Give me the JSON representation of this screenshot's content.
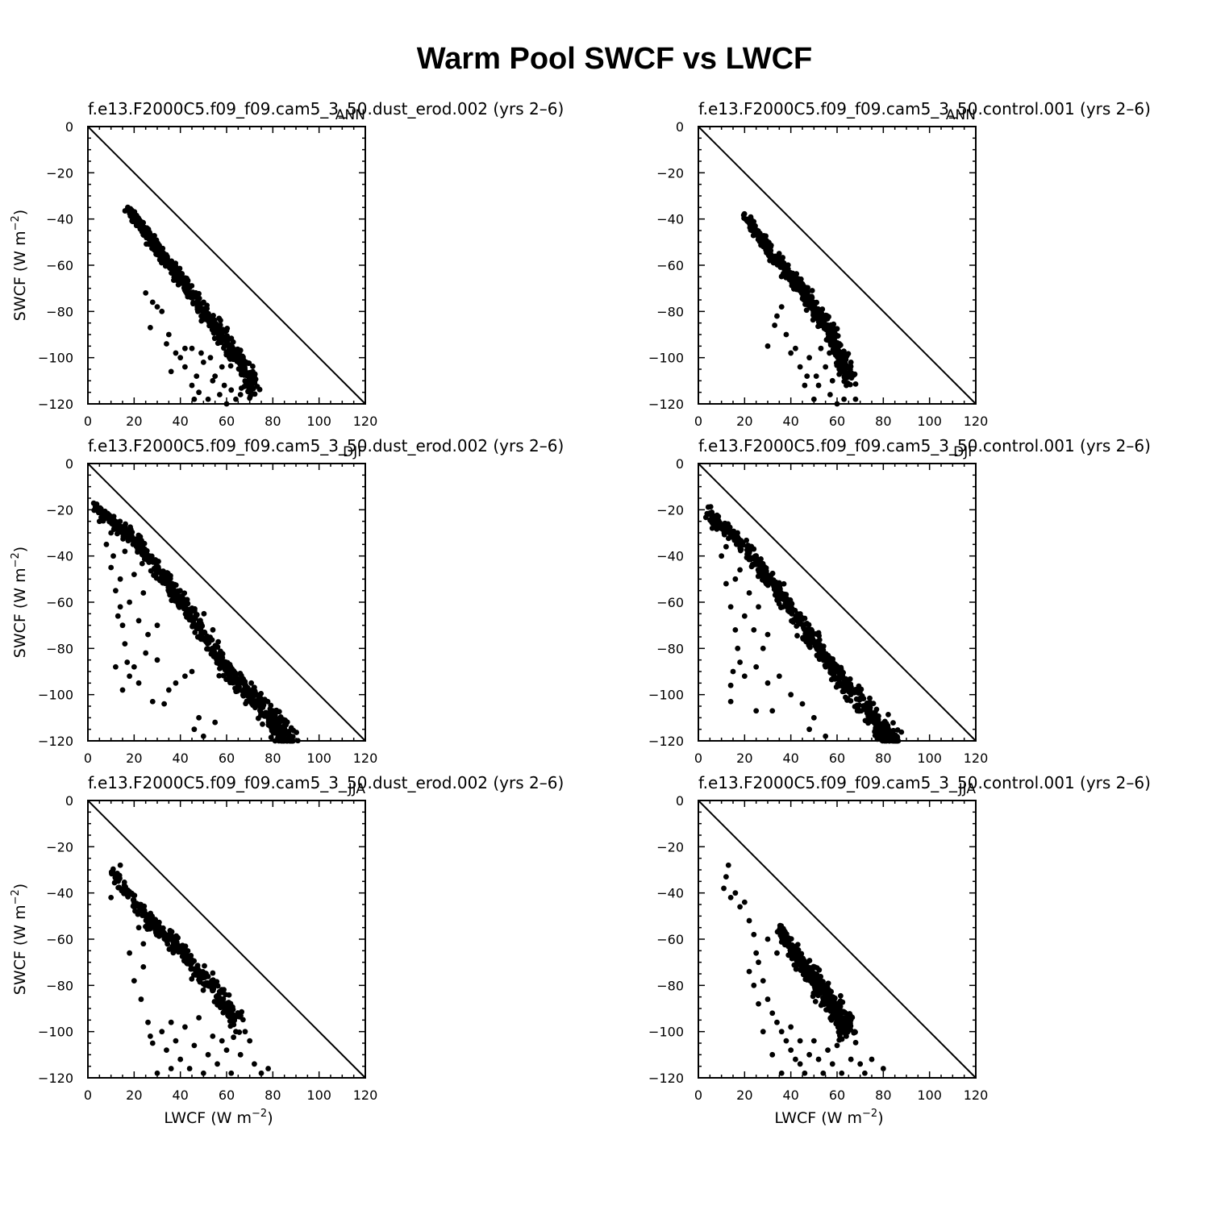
{
  "title": "Warm Pool SWCF vs LWCF",
  "chart_data": [
    {
      "type": "scatter",
      "id": "ann-left",
      "subtitle": "f.e13.F2000C5.f09_f09.cam5_3_50.dust_erod.002 (yrs 2–6)",
      "season": "ANN",
      "xlim": [
        0,
        120
      ],
      "ylim": [
        -120,
        0
      ],
      "xticks": [
        0,
        20,
        40,
        60,
        80,
        100,
        120
      ],
      "yticks": [
        0,
        -20,
        -40,
        -60,
        -80,
        -100,
        -120
      ],
      "ylabel": "SWCF (W m−2)",
      "xlabel": "",
      "reference_line": [
        [
          0,
          0
        ],
        [
          120,
          -120
        ]
      ],
      "seed": 11,
      "band": [
        [
          17,
          -35
        ],
        [
          30,
          -52
        ],
        [
          45,
          -72
        ],
        [
          62,
          -95
        ],
        [
          72,
          -112
        ]
      ],
      "band_width": 4,
      "band_n": 520,
      "scatter": [
        [
          25,
          -72
        ],
        [
          27,
          -87
        ],
        [
          34,
          -94
        ],
        [
          38,
          -98
        ],
        [
          42,
          -104
        ],
        [
          45,
          -112
        ],
        [
          48,
          -115
        ],
        [
          52,
          -118
        ],
        [
          55,
          -108
        ],
        [
          57,
          -116
        ],
        [
          60,
          -120
        ],
        [
          62,
          -114
        ],
        [
          50,
          -102
        ],
        [
          45,
          -96
        ],
        [
          40,
          -100
        ],
        [
          32,
          -80
        ],
        [
          28,
          -76
        ],
        [
          36,
          -106
        ],
        [
          54,
          -110
        ],
        [
          64,
          -118
        ],
        [
          58,
          -104
        ],
        [
          47,
          -108
        ],
        [
          42,
          -96
        ],
        [
          35,
          -90
        ],
        [
          30,
          -78
        ],
        [
          53,
          -100
        ],
        [
          59,
          -112
        ],
        [
          66,
          -116
        ],
        [
          46,
          -118
        ],
        [
          49,
          -98
        ]
      ]
    },
    {
      "type": "scatter",
      "id": "ann-right",
      "subtitle": "f.e13.F2000C5.f09_f09.cam5_3_50.control.001 (yrs 2–6)",
      "season": "ANN",
      "xlim": [
        0,
        120
      ],
      "ylim": [
        -120,
        0
      ],
      "xticks": [
        0,
        20,
        40,
        60,
        80,
        100,
        120
      ],
      "yticks": [
        0,
        -20,
        -40,
        -60,
        -80,
        -100,
        -120
      ],
      "ylabel": "",
      "xlabel": "",
      "reference_line": [
        [
          0,
          0
        ],
        [
          120,
          -120
        ]
      ],
      "seed": 23,
      "band": [
        [
          20,
          -38
        ],
        [
          32,
          -55
        ],
        [
          45,
          -70
        ],
        [
          58,
          -90
        ],
        [
          66,
          -110
        ]
      ],
      "band_width": 4,
      "band_n": 500,
      "scatter": [
        [
          30,
          -95
        ],
        [
          34,
          -82
        ],
        [
          36,
          -78
        ],
        [
          40,
          -98
        ],
        [
          44,
          -104
        ],
        [
          47,
          -108
        ],
        [
          50,
          -118
        ],
        [
          52,
          -112
        ],
        [
          55,
          -104
        ],
        [
          57,
          -116
        ],
        [
          60,
          -120
        ],
        [
          64,
          -112
        ],
        [
          68,
          -118
        ],
        [
          66,
          -102
        ],
        [
          62,
          -106
        ],
        [
          48,
          -100
        ],
        [
          42,
          -96
        ],
        [
          38,
          -90
        ],
        [
          33,
          -86
        ],
        [
          53,
          -96
        ],
        [
          58,
          -110
        ],
        [
          46,
          -112
        ],
        [
          51,
          -108
        ],
        [
          63,
          -118
        ]
      ]
    },
    {
      "type": "scatter",
      "id": "djf-left",
      "subtitle": "f.e13.F2000C5.f09_f09.cam5_3_50.dust_erod.002 (yrs 2–6)",
      "season": "DJF",
      "xlim": [
        0,
        120
      ],
      "ylim": [
        -120,
        0
      ],
      "xticks": [
        0,
        20,
        40,
        60,
        80,
        100,
        120
      ],
      "yticks": [
        0,
        -20,
        -40,
        -60,
        -80,
        -100,
        -120
      ],
      "ylabel": "SWCF (W m−2)",
      "xlabel": "",
      "reference_line": [
        [
          0,
          0
        ],
        [
          120,
          -120
        ]
      ],
      "seed": 37,
      "band": [
        [
          3,
          -18
        ],
        [
          20,
          -32
        ],
        [
          40,
          -58
        ],
        [
          60,
          -88
        ],
        [
          80,
          -110
        ],
        [
          88,
          -120
        ]
      ],
      "band_width": 5,
      "band_n": 620,
      "scatter": [
        [
          5,
          -25
        ],
        [
          8,
          -35
        ],
        [
          10,
          -45
        ],
        [
          12,
          -55
        ],
        [
          14,
          -62
        ],
        [
          15,
          -70
        ],
        [
          16,
          -78
        ],
        [
          17,
          -86
        ],
        [
          15,
          -98
        ],
        [
          18,
          -92
        ],
        [
          20,
          -88
        ],
        [
          22,
          -95
        ],
        [
          25,
          -82
        ],
        [
          28,
          -103
        ],
        [
          30,
          -85
        ],
        [
          33,
          -104
        ],
        [
          35,
          -98
        ],
        [
          38,
          -95
        ],
        [
          42,
          -92
        ],
        [
          45,
          -90
        ],
        [
          48,
          -110
        ],
        [
          46,
          -115
        ],
        [
          50,
          -118
        ],
        [
          55,
          -112
        ],
        [
          12,
          -88
        ],
        [
          11,
          -40
        ],
        [
          14,
          -50
        ],
        [
          18,
          -60
        ],
        [
          22,
          -68
        ],
        [
          26,
          -74
        ],
        [
          30,
          -70
        ],
        [
          20,
          -48
        ],
        [
          24,
          -56
        ],
        [
          10,
          -30
        ],
        [
          16,
          -38
        ],
        [
          13,
          -66
        ]
      ]
    },
    {
      "type": "scatter",
      "id": "djf-right",
      "subtitle": "f.e13.F2000C5.f09_f09.cam5_3_50.control.001 (yrs 2–6)",
      "season": "DJF",
      "xlim": [
        0,
        120
      ],
      "ylim": [
        -120,
        0
      ],
      "xticks": [
        0,
        20,
        40,
        60,
        80,
        100,
        120
      ],
      "yticks": [
        0,
        -20,
        -40,
        -60,
        -80,
        -100,
        -120
      ],
      "ylabel": "",
      "xlabel": "",
      "reference_line": [
        [
          0,
          0
        ],
        [
          120,
          -120
        ]
      ],
      "seed": 53,
      "band": [
        [
          4,
          -20
        ],
        [
          20,
          -35
        ],
        [
          40,
          -62
        ],
        [
          60,
          -90
        ],
        [
          78,
          -112
        ],
        [
          85,
          -120
        ]
      ],
      "band_width": 5,
      "band_n": 600,
      "scatter": [
        [
          6,
          -28
        ],
        [
          10,
          -40
        ],
        [
          12,
          -52
        ],
        [
          14,
          -62
        ],
        [
          16,
          -72
        ],
        [
          17,
          -80
        ],
        [
          18,
          -86
        ],
        [
          15,
          -90
        ],
        [
          14,
          -96
        ],
        [
          14,
          -103
        ],
        [
          20,
          -92
        ],
        [
          25,
          -88
        ],
        [
          30,
          -95
        ],
        [
          35,
          -92
        ],
        [
          40,
          -100
        ],
        [
          45,
          -104
        ],
        [
          48,
          -115
        ],
        [
          50,
          -110
        ],
        [
          55,
          -118
        ],
        [
          25,
          -107
        ],
        [
          32,
          -107
        ],
        [
          20,
          -66
        ],
        [
          24,
          -72
        ],
        [
          28,
          -80
        ],
        [
          22,
          -56
        ],
        [
          18,
          -46
        ],
        [
          26,
          -62
        ],
        [
          12,
          -36
        ],
        [
          30,
          -74
        ],
        [
          16,
          -50
        ]
      ]
    },
    {
      "type": "scatter",
      "id": "jja-left",
      "subtitle": "f.e13.F2000C5.f09_f09.cam5_3_50.dust_erod.002 (yrs 2–6)",
      "season": "JJA",
      "xlim": [
        0,
        120
      ],
      "ylim": [
        -120,
        0
      ],
      "xticks": [
        0,
        20,
        40,
        60,
        80,
        100,
        120
      ],
      "yticks": [
        0,
        -20,
        -40,
        -60,
        -80,
        -100,
        -120
      ],
      "ylabel": "SWCF (W m−2)",
      "xlabel": "LWCF (W m−2)",
      "reference_line": [
        [
          0,
          0
        ],
        [
          120,
          -120
        ]
      ],
      "seed": 71,
      "band": [
        [
          10,
          -30
        ],
        [
          25,
          -50
        ],
        [
          40,
          -64
        ],
        [
          55,
          -82
        ],
        [
          65,
          -95
        ]
      ],
      "band_width": 4,
      "band_n": 330,
      "scatter": [
        [
          10,
          -42
        ],
        [
          12,
          -33
        ],
        [
          14,
          -28
        ],
        [
          16,
          -38
        ],
        [
          20,
          -46
        ],
        [
          22,
          -55
        ],
        [
          24,
          -62
        ],
        [
          18,
          -66
        ],
        [
          20,
          -78
        ],
        [
          23,
          -86
        ],
        [
          26,
          -96
        ],
        [
          27,
          -102
        ],
        [
          28,
          -105
        ],
        [
          30,
          -118
        ],
        [
          34,
          -108
        ],
        [
          36,
          -96
        ],
        [
          38,
          -104
        ],
        [
          40,
          -112
        ],
        [
          42,
          -98
        ],
        [
          44,
          -116
        ],
        [
          46,
          -106
        ],
        [
          48,
          -94
        ],
        [
          50,
          -118
        ],
        [
          52,
          -110
        ],
        [
          54,
          -102
        ],
        [
          56,
          -114
        ],
        [
          60,
          -108
        ],
        [
          62,
          -118
        ],
        [
          64,
          -100
        ],
        [
          66,
          -110
        ],
        [
          70,
          -104
        ],
        [
          72,
          -114
        ],
        [
          75,
          -118
        ],
        [
          78,
          -116
        ],
        [
          68,
          -100
        ],
        [
          58,
          -104
        ],
        [
          36,
          -116
        ],
        [
          32,
          -100
        ],
        [
          24,
          -72
        ]
      ]
    },
    {
      "type": "scatter",
      "id": "jja-right",
      "subtitle": "f.e13.F2000C5.f09_f09.cam5_3_50.control.001 (yrs 2–6)",
      "season": "JJA",
      "xlim": [
        0,
        120
      ],
      "ylim": [
        -120,
        0
      ],
      "xticks": [
        0,
        20,
        40,
        60,
        80,
        100,
        120
      ],
      "yticks": [
        0,
        -20,
        -40,
        -60,
        -80,
        -100,
        -120
      ],
      "ylabel": "",
      "xlabel": "LWCF (W m−2)",
      "reference_line": [
        [
          0,
          0
        ],
        [
          120,
          -120
        ]
      ],
      "seed": 97,
      "band": [
        [
          35,
          -55
        ],
        [
          45,
          -70
        ],
        [
          55,
          -83
        ],
        [
          65,
          -98
        ]
      ],
      "band_width": 5,
      "band_n": 420,
      "scatter": [
        [
          11,
          -38
        ],
        [
          12,
          -33
        ],
        [
          13,
          -28
        ],
        [
          14,
          -42
        ],
        [
          16,
          -40
        ],
        [
          18,
          -46
        ],
        [
          20,
          -44
        ],
        [
          22,
          -52
        ],
        [
          24,
          -58
        ],
        [
          25,
          -66
        ],
        [
          26,
          -70
        ],
        [
          22,
          -74
        ],
        [
          24,
          -80
        ],
        [
          26,
          -88
        ],
        [
          28,
          -78
        ],
        [
          30,
          -86
        ],
        [
          32,
          -92
        ],
        [
          34,
          -96
        ],
        [
          36,
          -100
        ],
        [
          38,
          -104
        ],
        [
          40,
          -108
        ],
        [
          42,
          -112
        ],
        [
          44,
          -114
        ],
        [
          46,
          -118
        ],
        [
          48,
          -110
        ],
        [
          50,
          -104
        ],
        [
          52,
          -112
        ],
        [
          54,
          -118
        ],
        [
          56,
          -108
        ],
        [
          58,
          -114
        ],
        [
          60,
          -106
        ],
        [
          62,
          -118
        ],
        [
          64,
          -102
        ],
        [
          66,
          -112
        ],
        [
          70,
          -114
        ],
        [
          72,
          -118
        ],
        [
          75,
          -112
        ],
        [
          80,
          -116
        ],
        [
          28,
          -100
        ],
        [
          32,
          -110
        ],
        [
          36,
          -118
        ],
        [
          40,
          -98
        ],
        [
          44,
          -104
        ],
        [
          30,
          -60
        ],
        [
          34,
          -66
        ]
      ]
    }
  ]
}
